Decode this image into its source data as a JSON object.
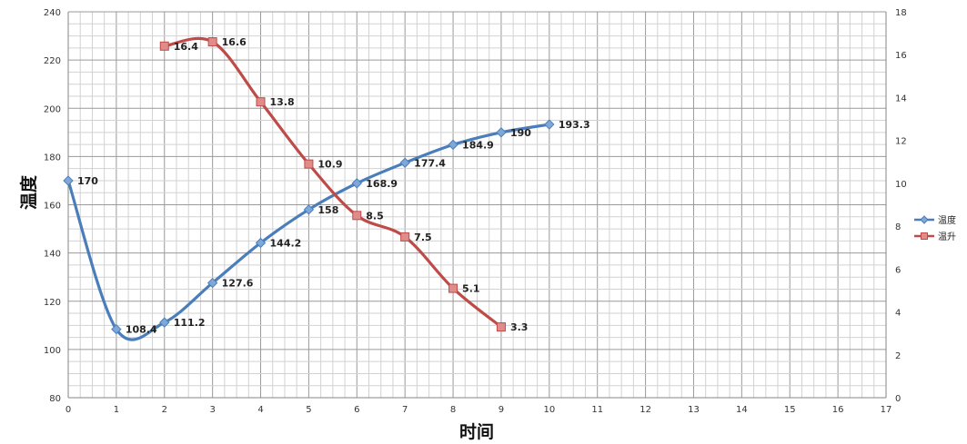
{
  "chart_data": {
    "type": "line",
    "x_axis": {
      "label": "时间",
      "min": 0,
      "max": 17,
      "major_step": 1,
      "minor_step": 0.25
    },
    "y_axis_left": {
      "label": "温度",
      "min": 80,
      "max": 240,
      "major_step": 20,
      "minor_step": 5
    },
    "y_axis_right": {
      "label": "",
      "min": 0,
      "max": 18,
      "major_step": 2
    },
    "grid": true,
    "legend_position": "right",
    "series": [
      {
        "name": "温度",
        "axis": "left",
        "color": "#4a7ebb",
        "marker": "diamond",
        "smooth": true,
        "x": [
          0,
          1,
          2,
          3,
          4,
          5,
          6,
          7,
          8,
          9,
          10
        ],
        "y": [
          170,
          108.4,
          111.2,
          127.6,
          144.2,
          158,
          168.9,
          177.4,
          184.9,
          190,
          193.3
        ],
        "labels": [
          "170",
          "108.4",
          "111.2",
          "127.6",
          "144.2",
          "158",
          "168.9",
          "177.4",
          "184.9",
          "190",
          "193.3"
        ]
      },
      {
        "name": "温升",
        "axis": "right",
        "color": "#be4b48",
        "marker": "square",
        "smooth": true,
        "x": [
          2,
          3,
          4,
          5,
          6,
          7,
          8,
          9
        ],
        "y": [
          16.4,
          16.6,
          13.8,
          10.9,
          8.5,
          7.5,
          5.1,
          3.3
        ],
        "labels": [
          "16.4",
          "16.6",
          "13.8",
          "10.9",
          "8.5",
          "7.5",
          "5.1",
          "3.3"
        ]
      }
    ]
  }
}
